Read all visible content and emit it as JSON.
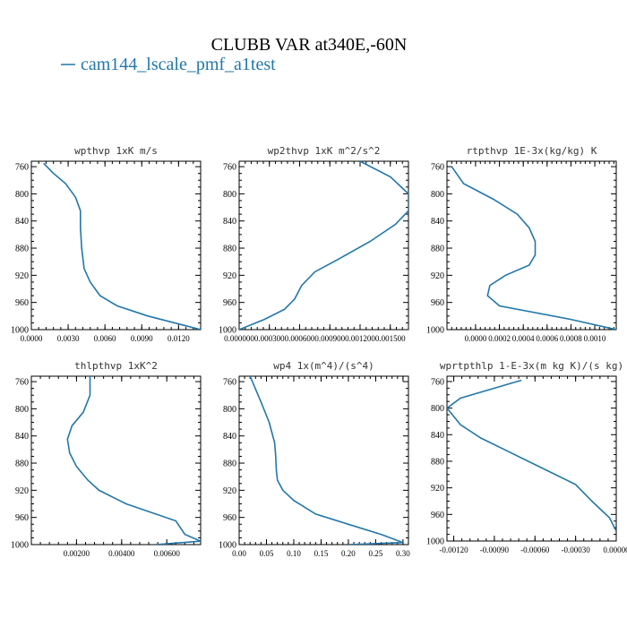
{
  "figure": {
    "title": "CLUBB VAR at340E,-60N",
    "legend_label": "cam144_lscale_pmf_a1test",
    "series_color": "#2277aa"
  },
  "chart_data": [
    {
      "type": "line",
      "title": "wpthvp  1xK m/s",
      "xlim": [
        0.0,
        0.0138
      ],
      "ylim": [
        1000,
        752
      ],
      "xticks": [
        "0.0000",
        "0.0030",
        "0.0060",
        "0.0090",
        "0.0120"
      ],
      "xtick_values": [
        0.0,
        0.003,
        0.006,
        0.009,
        0.012
      ],
      "yticks": [
        "760",
        "800",
        "840",
        "880",
        "920",
        "960",
        "1000"
      ],
      "ytick_values": [
        760,
        800,
        840,
        880,
        920,
        960,
        1000
      ],
      "series": [
        {
          "x": [
            0.001,
            0.0018,
            0.0028,
            0.0036,
            0.004,
            0.004,
            0.0041,
            0.0043,
            0.0048,
            0.0056,
            0.007,
            0.0095,
            0.0138
          ],
          "y": [
            755,
            770,
            785,
            805,
            825,
            850,
            880,
            910,
            930,
            950,
            965,
            980,
            1000
          ]
        }
      ]
    },
    {
      "type": "line",
      "title": "wp2thvp  1xK m^2/s^2",
      "xlim": [
        0.0,
        0.00168
      ],
      "ylim": [
        1000,
        752
      ],
      "xticks": [
        "0.000000",
        "0.000300",
        "0.000600",
        "0.000900",
        "0.001200",
        "0.001500"
      ],
      "xtick_values": [
        0.0,
        0.0003,
        0.0006,
        0.0009,
        0.0012,
        0.0015
      ],
      "yticks": [
        "760",
        "800",
        "840",
        "880",
        "920",
        "960",
        "1000"
      ],
      "ytick_values": [
        760,
        800,
        840,
        880,
        920,
        960,
        1000
      ],
      "series": [
        {
          "x": [
            0.0012,
            0.0015,
            0.00168,
            0.00168,
            0.00155,
            0.0013,
            0.001,
            0.00075,
            0.00062,
            0.00055,
            0.00045,
            0.00025,
            0.0
          ],
          "y": [
            752,
            775,
            800,
            825,
            845,
            870,
            895,
            915,
            935,
            955,
            970,
            985,
            1000
          ]
        }
      ]
    },
    {
      "type": "line",
      "title": "rtpthvp  1E-3x(kg/kg) K",
      "xlim": [
        -0.00024,
        0.00118
      ],
      "ylim": [
        1000,
        752
      ],
      "xticks": [
        "0.0000",
        "0.0002",
        "0.0004",
        "0.0006",
        "0.0008",
        "0.0010"
      ],
      "xtick_values": [
        0.0,
        0.0002,
        0.0004,
        0.0006,
        0.0008,
        0.001
      ],
      "yticks": [
        "760",
        "800",
        "840",
        "880",
        "920",
        "960",
        "1000"
      ],
      "ytick_values": [
        760,
        800,
        840,
        880,
        920,
        960,
        1000
      ],
      "series": [
        {
          "x": [
            -0.0002,
            -0.0001,
            0.00015,
            0.00035,
            0.00045,
            0.0005,
            0.0005,
            0.00045,
            0.00025,
            0.00012,
            0.0001,
            0.0002,
            0.0008,
            0.00118
          ],
          "y": [
            760,
            785,
            808,
            830,
            850,
            870,
            890,
            905,
            920,
            935,
            950,
            965,
            985,
            1000
          ]
        }
      ]
    },
    {
      "type": "line",
      "title": "thlpthvp  1xK^2",
      "xlim": [
        0.0,
        0.0075
      ],
      "ylim": [
        1000,
        752
      ],
      "xticks": [
        "0.00200",
        "0.00400",
        "0.00600"
      ],
      "xtick_values": [
        0.002,
        0.004,
        0.006
      ],
      "yticks": [
        "760",
        "800",
        "840",
        "880",
        "920",
        "960",
        "1000"
      ],
      "ytick_values": [
        760,
        800,
        840,
        880,
        920,
        960,
        1000
      ],
      "series": [
        {
          "x": [
            0.0026,
            0.0026,
            0.0023,
            0.0018,
            0.0016,
            0.0017,
            0.002,
            0.0025,
            0.003,
            0.0042,
            0.0064,
            0.0068,
            0.0075,
            0.0055
          ],
          "y": [
            752,
            780,
            805,
            825,
            845,
            865,
            885,
            905,
            920,
            940,
            965,
            985,
            995,
            1000
          ]
        }
      ]
    },
    {
      "type": "line",
      "title": "wp4  1x(m^4)/(s^4)",
      "xlim": [
        0.0,
        0.31
      ],
      "ylim": [
        1000,
        752
      ],
      "xticks": [
        "0.00",
        "0.05",
        "0.10",
        "0.15",
        "0.20",
        "0.25",
        "0.30"
      ],
      "xtick_values": [
        0.0,
        0.05,
        0.1,
        0.15,
        0.2,
        0.25,
        0.3
      ],
      "yticks": [
        "760",
        "800",
        "840",
        "880",
        "920",
        "960",
        "1000"
      ],
      "ytick_values": [
        760,
        800,
        840,
        880,
        920,
        960,
        1000
      ],
      "series": [
        {
          "x": [
            0.02,
            0.04,
            0.055,
            0.065,
            0.067,
            0.068,
            0.07,
            0.08,
            0.1,
            0.14,
            0.2,
            0.26,
            0.3,
            0.2
          ],
          "y": [
            752,
            790,
            820,
            850,
            870,
            890,
            905,
            920,
            935,
            955,
            970,
            985,
            997,
            1000
          ]
        }
      ]
    },
    {
      "type": "line",
      "title": "wprtpthlp  1-E-3x(m kg K)/(s kg)",
      "xlim": [
        -0.00125,
        0.0
      ],
      "ylim": [
        1000,
        752
      ],
      "xticks": [
        "-0.00120",
        "-0.00090",
        "-0.00060",
        "-0.00030",
        "0.00000"
      ],
      "xtick_values": [
        -0.0012,
        -0.0009,
        -0.0006,
        -0.0003,
        0.0
      ],
      "yticks": [
        "760",
        "800",
        "840",
        "880",
        "920",
        "960",
        "1000"
      ],
      "ytick_values": [
        760,
        800,
        840,
        880,
        920,
        960,
        1000
      ],
      "series": [
        {
          "x": [
            -0.0007,
            -0.0009,
            -0.00115,
            -0.00125,
            -0.00115,
            -0.001,
            -0.0008,
            -0.00055,
            -0.0003,
            -0.00018,
            -5e-05,
            0.0
          ],
          "y": [
            758,
            770,
            785,
            800,
            825,
            845,
            865,
            890,
            915,
            940,
            965,
            985
          ]
        }
      ]
    }
  ]
}
